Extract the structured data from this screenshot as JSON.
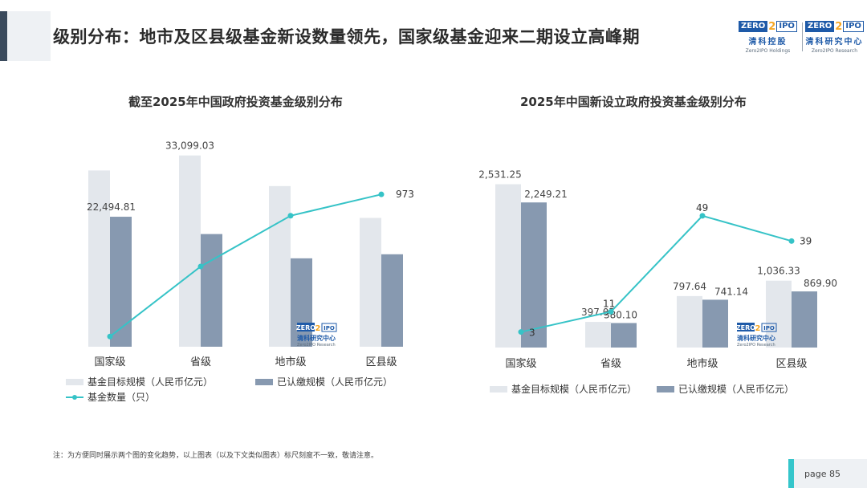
{
  "page": {
    "title": "级别分布：地市及区县级基金新设数量领先，国家级基金迎来二期设立高峰期",
    "footnote": "注：为方便同时展示两个图的变化趋势，以上图表（以及下文类似图表）标尺刻度不一致，敬请注意。",
    "page_number": "page  85"
  },
  "logos": {
    "left": {
      "zero": "ZERO",
      "two": "2",
      "ipo": "IPO",
      "cn": "清科控股",
      "en": "Zero2IPO Holdings"
    },
    "right": {
      "zero": "ZERO",
      "two": "2",
      "ipo": "IPO",
      "cn": "清科研究中心",
      "en": "Zero2IPO Research"
    },
    "watermark": {
      "zero": "ZERO",
      "two": "2",
      "ipo": "IPO",
      "cn": "清科研究中心",
      "en": "Zero2IPO Research"
    }
  },
  "colors": {
    "target": "#e3e7ec",
    "paid": "#8799b0",
    "count": "#36c3c7",
    "accent": "#3a4a5c",
    "brand": "#1e5aa8"
  },
  "chart_data": [
    {
      "type": "bar+line",
      "title": "截至2025年中国政府投资基金级别分布",
      "categories": [
        "国家级",
        "省级",
        "地市级",
        "区县级"
      ],
      "series": [
        {
          "name": "基金目标规模（人民币亿元）",
          "kind": "bar",
          "values": [
            30500,
            33099.03,
            27800,
            22300
          ],
          "labels": [
            "",
            "33,099.03",
            "",
            ""
          ]
        },
        {
          "name": "已认缴规模（人民币亿元）",
          "kind": "bar",
          "values": [
            22494.81,
            19500,
            15300,
            16000
          ],
          "labels": [
            "22,494.81",
            "",
            "",
            ""
          ]
        },
        {
          "name": "基金数量（只）",
          "kind": "line",
          "values": [
            20,
            490,
            830,
            973
          ],
          "labels": [
            "",
            "",
            "",
            "973"
          ]
        }
      ],
      "bar_ylim": [
        0,
        35000
      ],
      "line_ylim": [
        0,
        1200
      ],
      "legend": [
        {
          "name": "基金目标规模（人民币亿元）",
          "kind": "bar",
          "color": "#e3e7ec"
        },
        {
          "name": "已认缴规模（人民币亿元）",
          "kind": "bar",
          "color": "#8799b0"
        },
        {
          "name": "基金数量（只）",
          "kind": "line",
          "color": "#36c3c7"
        }
      ]
    },
    {
      "type": "bar+line",
      "title": "2025年中国新设立政府投资基金级别分布",
      "categories": [
        "国家级",
        "省级",
        "地市级",
        "区县级"
      ],
      "series": [
        {
          "name": "基金目标规模（人民币亿元）",
          "kind": "bar",
          "values": [
            2531.25,
            397.07,
            797.64,
            1036.33
          ],
          "labels": [
            "2,531.25",
            "397.07",
            "797.64",
            "1,036.33"
          ]
        },
        {
          "name": "已认缴规模（人民币亿元）",
          "kind": "bar",
          "values": [
            2249.21,
            380.1,
            741.14,
            869.9
          ],
          "labels": [
            "2,249.21",
            "380.10",
            "741.14",
            "869.90"
          ]
        },
        {
          "name": "基金数量（只）",
          "kind": "line",
          "values": [
            3,
            11,
            49,
            39
          ],
          "labels": [
            "3",
            "11",
            "49",
            "39"
          ]
        }
      ],
      "bar_ylim": [
        0,
        2650
      ],
      "line_ylim": [
        0,
        55
      ],
      "legend": [
        {
          "name": "基金目标规模（人民币亿元）",
          "kind": "bar",
          "color": "#e3e7ec"
        },
        {
          "name": "已认缴规模（人民币亿元）",
          "kind": "bar",
          "color": "#8799b0"
        }
      ]
    }
  ]
}
